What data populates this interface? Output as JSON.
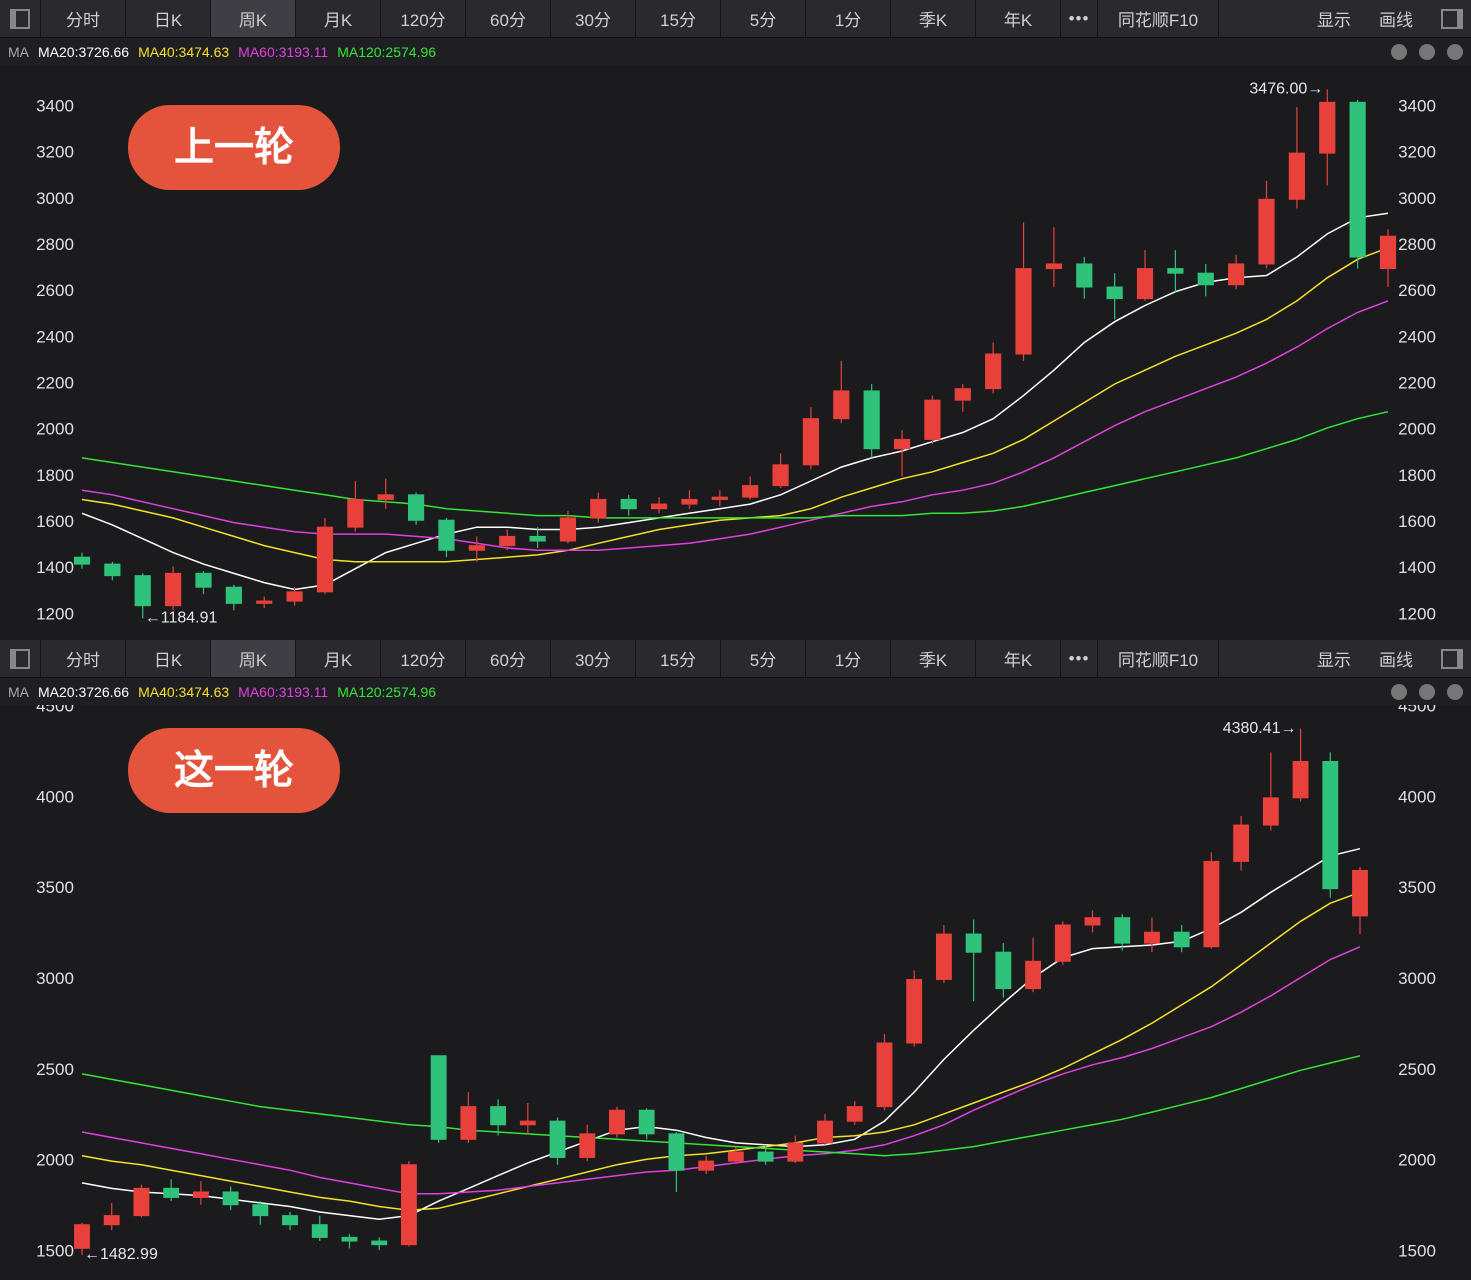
{
  "toolbar": {
    "tabs": [
      "分时",
      "日K",
      "周K",
      "月K",
      "120分",
      "60分",
      "30分",
      "15分",
      "5分",
      "1分",
      "季K",
      "年K",
      "•••",
      "同花顺F10"
    ],
    "active_tab_index": 2,
    "right": [
      "显示",
      "画线"
    ]
  },
  "chart_data": [
    {
      "type": "candlestick",
      "label": "上一轮",
      "legend_prefix": "MA",
      "ylim": [
        1126,
        3560
      ],
      "yticks": [
        1200,
        1400,
        1600,
        1800,
        2000,
        2200,
        2400,
        2600,
        2800,
        3000,
        3200,
        3400
      ],
      "up_color": "#e8413b",
      "down_color": "#2fc27a",
      "open": [
        1450,
        1420,
        1370,
        1240,
        1380,
        1320,
        1250,
        1260,
        1300,
        1580,
        1700,
        1720,
        1610,
        1480,
        1500,
        1540,
        1520,
        1620,
        1700,
        1660,
        1680,
        1700,
        1710,
        1760,
        1850,
        2050,
        2170,
        1920,
        1960,
        2130,
        2180,
        2330,
        2700,
        2720,
        2620,
        2570,
        2700,
        2680,
        2630,
        2720,
        3000,
        3200,
        3420,
        2700
      ],
      "high": [
        1470,
        1430,
        1380,
        1410,
        1390,
        1330,
        1280,
        1320,
        1620,
        1780,
        1790,
        1730,
        1620,
        1540,
        1570,
        1580,
        1650,
        1730,
        1720,
        1710,
        1740,
        1740,
        1800,
        1900,
        2100,
        2300,
        2200,
        2000,
        2150,
        2200,
        2380,
        2900,
        2880,
        2750,
        2680,
        2780,
        2780,
        2720,
        2760,
        3080,
        3400,
        3476,
        3430,
        2870
      ],
      "low": [
        1400,
        1350,
        1184.91,
        1220,
        1290,
        1220,
        1230,
        1240,
        1290,
        1560,
        1660,
        1590,
        1450,
        1430,
        1480,
        1490,
        1510,
        1600,
        1630,
        1640,
        1660,
        1670,
        1700,
        1750,
        1830,
        2030,
        1880,
        1800,
        1940,
        2080,
        2160,
        2300,
        2620,
        2570,
        2480,
        2560,
        2600,
        2580,
        2610,
        2700,
        2960,
        3060,
        2700,
        2620
      ],
      "close": [
        1420,
        1370,
        1240,
        1380,
        1320,
        1250,
        1260,
        1300,
        1580,
        1700,
        1720,
        1610,
        1480,
        1500,
        1540,
        1520,
        1620,
        1700,
        1660,
        1680,
        1700,
        1710,
        1760,
        1850,
        2050,
        2170,
        1920,
        1960,
        2130,
        2180,
        2330,
        2700,
        2720,
        2620,
        2570,
        2700,
        2680,
        2630,
        2720,
        3000,
        3200,
        3420,
        2750,
        2840
      ],
      "series": [
        {
          "name": "MA20:3726.66",
          "color": "#ffffff",
          "values": [
            1640,
            1590,
            1530,
            1470,
            1420,
            1380,
            1340,
            1310,
            1330,
            1400,
            1470,
            1510,
            1550,
            1580,
            1580,
            1570,
            1570,
            1580,
            1600,
            1620,
            1640,
            1660,
            1680,
            1720,
            1780,
            1840,
            1880,
            1910,
            1950,
            1990,
            2050,
            2150,
            2260,
            2380,
            2470,
            2540,
            2600,
            2640,
            2660,
            2670,
            2750,
            2850,
            2920,
            2940
          ]
        },
        {
          "name": "MA40:3474.63",
          "color": "#f5e02a",
          "values": [
            1700,
            1680,
            1650,
            1620,
            1580,
            1540,
            1500,
            1470,
            1440,
            1430,
            1430,
            1430,
            1430,
            1440,
            1450,
            1460,
            1480,
            1510,
            1540,
            1570,
            1590,
            1610,
            1620,
            1630,
            1660,
            1710,
            1750,
            1790,
            1820,
            1860,
            1900,
            1960,
            2040,
            2120,
            2200,
            2260,
            2320,
            2370,
            2420,
            2480,
            2560,
            2660,
            2740,
            2790
          ]
        },
        {
          "name": "MA60:3193.11",
          "color": "#e040e0",
          "values": [
            1740,
            1720,
            1690,
            1660,
            1630,
            1600,
            1580,
            1560,
            1550,
            1550,
            1550,
            1540,
            1530,
            1510,
            1490,
            1480,
            1480,
            1480,
            1490,
            1500,
            1510,
            1530,
            1550,
            1580,
            1610,
            1640,
            1670,
            1690,
            1720,
            1740,
            1770,
            1820,
            1880,
            1950,
            2020,
            2080,
            2130,
            2180,
            2230,
            2290,
            2360,
            2440,
            2510,
            2560
          ]
        },
        {
          "name": "MA120:2574.96",
          "color": "#33e633",
          "values": [
            1880,
            1860,
            1840,
            1820,
            1800,
            1780,
            1760,
            1740,
            1720,
            1700,
            1690,
            1680,
            1660,
            1650,
            1640,
            1630,
            1630,
            1620,
            1620,
            1620,
            1620,
            1620,
            1620,
            1620,
            1620,
            1630,
            1630,
            1630,
            1640,
            1640,
            1650,
            1670,
            1700,
            1730,
            1760,
            1790,
            1820,
            1850,
            1880,
            1920,
            1960,
            2010,
            2050,
            2080
          ]
        }
      ],
      "annotations": [
        {
          "label": "3476.00→",
          "value": 3476,
          "index": 41,
          "side": "left"
        },
        {
          "label": "←1184.91",
          "value": 1184.91,
          "index": 2,
          "side": "right"
        }
      ]
    },
    {
      "type": "candlestick",
      "label": "这一轮",
      "legend_prefix": "MA",
      "ylim": [
        1373,
        4511
      ],
      "yticks": [
        1500,
        2000,
        2500,
        3000,
        3500,
        4000,
        4500
      ],
      "up_color": "#e8413b",
      "down_color": "#2fc27a",
      "open": [
        1520,
        1650,
        1700,
        1850,
        1800,
        1830,
        1760,
        1700,
        1650,
        1580,
        1560,
        1540,
        2580,
        2120,
        2300,
        2200,
        2220,
        2020,
        2150,
        2280,
        2150,
        1950,
        2000,
        2050,
        2000,
        2100,
        2220,
        2300,
        2650,
        3000,
        3250,
        3150,
        2950,
        3100,
        3300,
        3340,
        3200,
        3260,
        3180,
        3650,
        3850,
        4000,
        4200,
        3350
      ],
      "high": [
        1660,
        1770,
        1870,
        1900,
        1890,
        1860,
        1780,
        1720,
        1700,
        1600,
        1580,
        2000,
        2580,
        2380,
        2340,
        2320,
        2240,
        2200,
        2300,
        2290,
        2160,
        2030,
        2080,
        2090,
        2140,
        2260,
        2330,
        2700,
        3050,
        3300,
        3330,
        3200,
        3230,
        3320,
        3380,
        3360,
        3340,
        3300,
        3700,
        3900,
        4250,
        4380.41,
        4250,
        3620
      ],
      "low": [
        1482.99,
        1620,
        1690,
        1780,
        1760,
        1730,
        1650,
        1620,
        1560,
        1520,
        1510,
        1530,
        2100,
        2100,
        2140,
        2150,
        1980,
        2000,
        2130,
        2120,
        1830,
        1930,
        1990,
        1980,
        1990,
        2090,
        2200,
        2280,
        2630,
        2980,
        2880,
        2900,
        2930,
        3080,
        3260,
        3160,
        3150,
        3150,
        3170,
        3600,
        3820,
        3980,
        3450,
        3250
      ],
      "close": [
        1650,
        1700,
        1850,
        1800,
        1830,
        1760,
        1700,
        1650,
        1580,
        1560,
        1540,
        1980,
        2120,
        2300,
        2200,
        2220,
        2020,
        2150,
        2280,
        2150,
        1950,
        2000,
        2050,
        2000,
        2100,
        2220,
        2300,
        2650,
        3000,
        3250,
        3150,
        2950,
        3100,
        3300,
        3340,
        3200,
        3260,
        3180,
        3650,
        3850,
        4000,
        4200,
        3500,
        3600
      ],
      "series": [
        {
          "name": "MA20:3726.66",
          "color": "#ffffff",
          "values": [
            1880,
            1850,
            1830,
            1820,
            1810,
            1790,
            1770,
            1750,
            1720,
            1700,
            1680,
            1700,
            1780,
            1850,
            1920,
            1990,
            2050,
            2110,
            2170,
            2190,
            2170,
            2130,
            2100,
            2090,
            2080,
            2090,
            2120,
            2220,
            2380,
            2560,
            2720,
            2870,
            3010,
            3120,
            3170,
            3180,
            3190,
            3210,
            3280,
            3370,
            3480,
            3580,
            3680,
            3720
          ]
        },
        {
          "name": "MA40:3474.63",
          "color": "#f5e02a",
          "values": [
            2030,
            2000,
            1980,
            1950,
            1920,
            1890,
            1860,
            1830,
            1800,
            1780,
            1750,
            1730,
            1740,
            1780,
            1820,
            1860,
            1900,
            1940,
            1980,
            2010,
            2030,
            2040,
            2060,
            2080,
            2100,
            2130,
            2140,
            2160,
            2200,
            2260,
            2320,
            2380,
            2440,
            2510,
            2590,
            2670,
            2760,
            2860,
            2960,
            3080,
            3200,
            3320,
            3420,
            3480
          ]
        },
        {
          "name": "MA60:3193.11",
          "color": "#e040e0",
          "values": [
            2160,
            2130,
            2100,
            2070,
            2040,
            2010,
            1980,
            1950,
            1910,
            1880,
            1850,
            1820,
            1820,
            1830,
            1840,
            1860,
            1880,
            1900,
            1920,
            1940,
            1950,
            1970,
            1990,
            2010,
            2030,
            2040,
            2060,
            2090,
            2140,
            2200,
            2280,
            2350,
            2420,
            2480,
            2530,
            2570,
            2620,
            2680,
            2740,
            2820,
            2910,
            3010,
            3110,
            3180
          ]
        },
        {
          "name": "MA120:2574.96",
          "color": "#33e633",
          "values": [
            2480,
            2450,
            2420,
            2390,
            2360,
            2330,
            2300,
            2280,
            2260,
            2240,
            2220,
            2200,
            2190,
            2170,
            2160,
            2150,
            2140,
            2130,
            2120,
            2110,
            2100,
            2090,
            2080,
            2070,
            2060,
            2050,
            2040,
            2030,
            2040,
            2060,
            2080,
            2110,
            2140,
            2170,
            2200,
            2230,
            2270,
            2310,
            2350,
            2400,
            2450,
            2500,
            2540,
            2580
          ]
        }
      ],
      "annotations": [
        {
          "label": "4380.41→",
          "value": 4380.41,
          "index": 41,
          "side": "left"
        },
        {
          "label": "←1482.99",
          "value": 1482.99,
          "index": 0,
          "side": "right"
        }
      ]
    }
  ]
}
